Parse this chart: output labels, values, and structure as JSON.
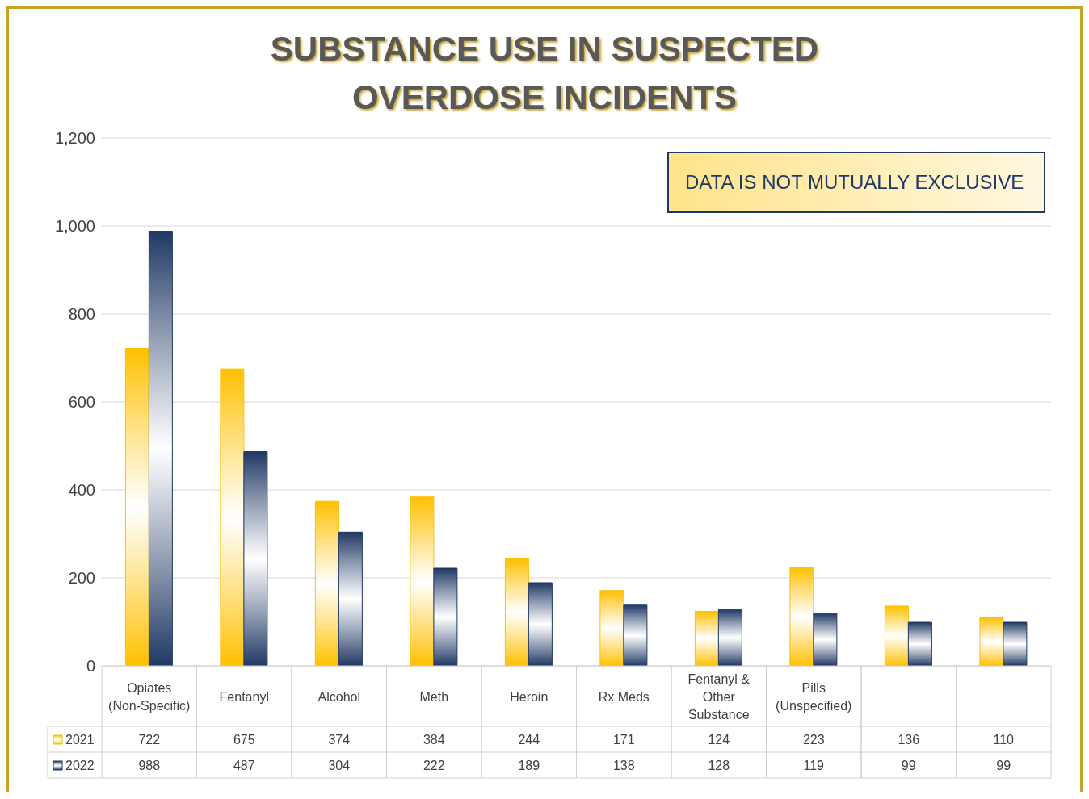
{
  "chart_data": {
    "type": "bar",
    "title": "SUBSTANCE USE IN SUSPECTED OVERDOSE INCIDENTS",
    "categories": [
      "Opiates (Non-Specific)",
      "Fentanyl",
      "Alcohol",
      "Meth",
      "Heroin",
      "Rx Meds",
      "Fentanyl & Other Substance",
      "Pills (Unspecified)",
      null,
      null
    ],
    "series": [
      {
        "name": "2021",
        "color": "#ffc000",
        "values": [
          722,
          675,
          374,
          384,
          244,
          171,
          124,
          223,
          136,
          110
        ]
      },
      {
        "name": "2022",
        "color": "#1f3864",
        "values": [
          988,
          487,
          304,
          222,
          189,
          138,
          128,
          119,
          99,
          99
        ]
      }
    ],
    "ylim": [
      0,
      1200
    ],
    "yticks": [
      0,
      200,
      400,
      600,
      800,
      {
        "value": 1000,
        "label": "1,000"
      },
      {
        "value": 1200,
        "label": "1,200"
      }
    ],
    "grid": "y",
    "legend": "bottom",
    "data_labels": true,
    "annotations": [
      "DATA IS NOT MUTUALLY EXCLUSIVE"
    ]
  }
}
